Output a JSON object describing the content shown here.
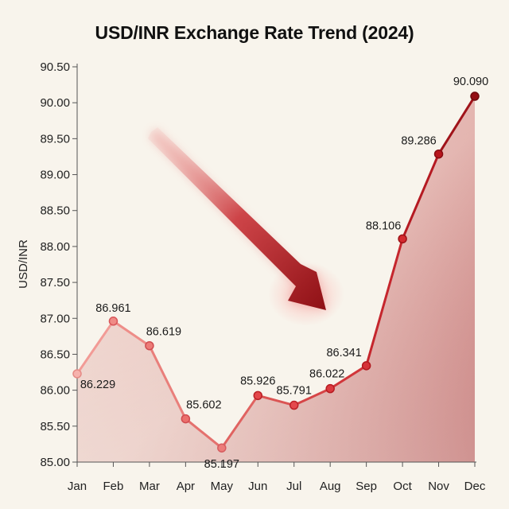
{
  "chart_data": {
    "type": "area",
    "title": "USD/INR Exchange Rate Trend (2024)",
    "xlabel": "",
    "ylabel": "USD/INR",
    "categories": [
      "Jan",
      "Feb",
      "Mar",
      "Apr",
      "May",
      "Jun",
      "Jul",
      "Aug",
      "Sep",
      "Oct",
      "Nov",
      "Dec"
    ],
    "values": [
      86.229,
      86.961,
      86.619,
      85.602,
      85.197,
      85.926,
      85.791,
      86.022,
      86.341,
      88.106,
      89.286,
      90.09
    ],
    "data_labels": [
      "86.229",
      "86.961",
      "86.619",
      "85.602",
      "85.197",
      "85.926",
      "85.791",
      "86.022",
      "86.341",
      "88.106",
      "89.286",
      "90.090"
    ],
    "ylim": [
      85.0,
      90.5
    ],
    "yticks": [
      "85.00",
      "85.50",
      "86.00",
      "86.50",
      "87.00",
      "87.50",
      "88.00",
      "88.50",
      "89.00",
      "89.50",
      "90.00",
      "90.50"
    ],
    "grid": false,
    "legend": "none",
    "annotations": [
      {
        "type": "arrow",
        "direction": "down-right",
        "color": "#b3141c"
      }
    ],
    "colors": {
      "line_start": "#f08a84",
      "line_end": "#8e1015",
      "fill": "#b01e22",
      "background": "#f8f4ec"
    }
  }
}
